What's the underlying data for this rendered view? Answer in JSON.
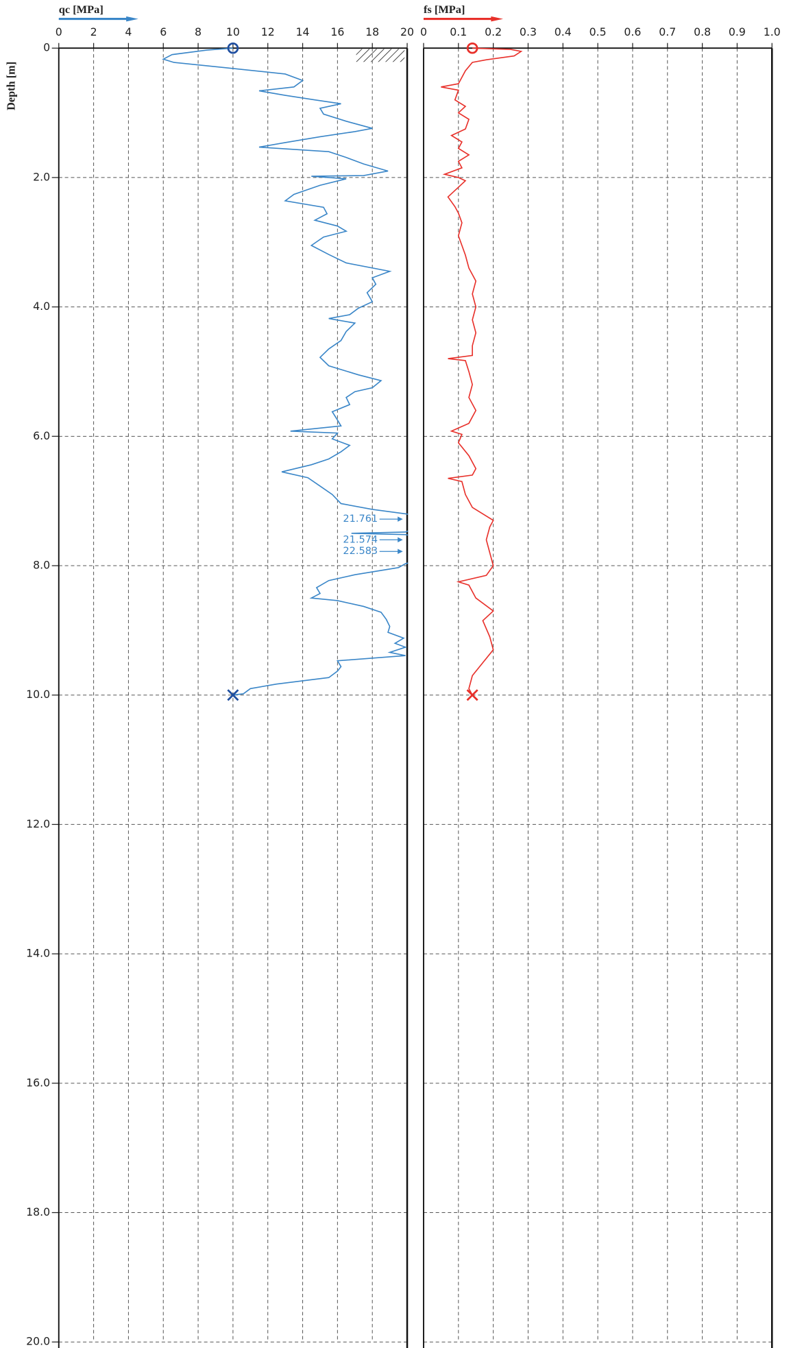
{
  "chart_data": [
    {
      "type": "line",
      "title": "qc [MPa]",
      "ylabel": "Depth [m]",
      "xlim": [
        0,
        20
      ],
      "xticks": [
        0,
        2,
        4,
        6,
        8,
        10,
        12,
        14,
        16,
        18,
        20
      ],
      "ylim": [
        0,
        20
      ],
      "yticks": [
        0,
        {
          "value": 2,
          "label": "2.0"
        },
        {
          "value": 4,
          "label": "4.0"
        },
        {
          "value": 6,
          "label": "6.0"
        },
        {
          "value": 8,
          "label": "8.0"
        },
        {
          "value": 10,
          "label": "10.0"
        },
        {
          "value": 12,
          "label": "12.0"
        },
        {
          "value": 14,
          "label": "14.0"
        },
        {
          "value": 16,
          "label": "16.0"
        },
        {
          "value": 18,
          "label": "18.0"
        },
        {
          "value": 20,
          "label": "20.0"
        }
      ],
      "grid": true,
      "color": "#3a86c8",
      "marker_color": "#1f4fa0",
      "series": [
        {
          "color": "#3a86c8",
          "depth": [
            0,
            0.03,
            0.1,
            0.17,
            0.22,
            0.3,
            0.4,
            0.5,
            0.6,
            0.66,
            0.73,
            0.8,
            0.86,
            0.93,
            1.02,
            1.13,
            1.24,
            1.29,
            1.37,
            1.46,
            1.53,
            1.6,
            1.69,
            1.79,
            1.9,
            1.97,
            1.98,
            2.02,
            2.12,
            2.26,
            2.36,
            2.46,
            2.56,
            2.66,
            2.75,
            2.83,
            2.92,
            3.05,
            3.19,
            3.32,
            3.45,
            3.55,
            3.65,
            3.78,
            3.92,
            4.02,
            4.12,
            4.18,
            4.25,
            4.38,
            4.52,
            4.65,
            4.78,
            4.91,
            5.05,
            5.14,
            5.25,
            5.31,
            5.4,
            5.51,
            5.62,
            5.75,
            5.84,
            5.92,
            5.95,
            6.04,
            6.14,
            6.24,
            6.35,
            6.44,
            6.55,
            6.64,
            6.77,
            6.9,
            7.04,
            7.13,
            7.2,
            7.28,
            7.48,
            7.5,
            7.52,
            7.6,
            7.78,
            7.97,
            8.03,
            8.14,
            8.23,
            8.34,
            8.43,
            8.5,
            8.54,
            8.63,
            8.72,
            8.83,
            8.94,
            9.03,
            9.12,
            9.2,
            9.26,
            9.34,
            9.39,
            9.47,
            9.56,
            9.63,
            9.73,
            9.83,
            9.9,
            9.98,
            10
          ],
          "values": [
            10,
            8.5,
            6.5,
            6.0,
            6.6,
            9.5,
            13,
            14,
            13.5,
            11.5,
            13,
            14.7,
            16.2,
            15,
            15.2,
            16.5,
            18,
            17,
            15,
            13,
            11.5,
            15.5,
            16.5,
            17.5,
            18.9,
            17.5,
            14.5,
            16.5,
            15,
            13.5,
            13,
            15.2,
            15.4,
            14.7,
            16,
            16.5,
            15.2,
            14.5,
            15.5,
            16.5,
            19,
            18,
            18.2,
            17.7,
            18,
            17.2,
            16.7,
            15.5,
            17,
            16.5,
            16.2,
            15.5,
            15,
            15.5,
            17.2,
            18.5,
            18,
            17,
            16.5,
            16.7,
            15.7,
            16,
            16.2,
            13.3,
            16,
            15.7,
            16.7,
            16.2,
            15.5,
            14.5,
            12.8,
            14.3,
            15,
            15.7,
            16.2,
            18,
            19.95,
            21.761,
            19.9,
            16.8,
            19.9,
            21.574,
            22.583,
            19.9,
            19.5,
            17,
            15.5,
            14.8,
            15,
            14.5,
            16,
            17.5,
            18.5,
            18.8,
            19,
            18.9,
            19.8,
            19.3,
            19.9,
            19,
            19.9,
            16,
            16.2,
            16,
            15.5,
            12.5,
            11,
            10.6,
            10
          ]
        }
      ]
    },
    {
      "type": "line",
      "title": "fs [MPa]",
      "xlim": [
        0,
        1
      ],
      "xticks": [
        0,
        0.1,
        0.2,
        0.3,
        0.4,
        0.5,
        0.6,
        0.7,
        0.8,
        0.9,
        {
          "value": 1,
          "label": "1.0"
        }
      ],
      "ylim": [
        0,
        20
      ],
      "yticks": [
        0,
        2,
        4,
        6,
        8,
        10,
        12,
        14,
        16,
        18,
        20
      ],
      "ytick_labels": false,
      "grid": true,
      "color": "#e8302a",
      "marker_color": "#e8302a",
      "series": [
        {
          "color": "#e8302a",
          "depth": [
            0,
            0.02,
            0.05,
            0.12,
            0.18,
            0.22,
            0.35,
            0.55,
            0.6,
            0.65,
            0.8,
            0.9,
            1.0,
            1.1,
            1.25,
            1.35,
            1.45,
            1.55,
            1.65,
            1.75,
            1.85,
            1.95,
            2.0,
            2.05,
            2.15,
            2.3,
            2.45,
            2.55,
            2.7,
            2.9,
            3.05,
            3.2,
            3.4,
            3.6,
            3.8,
            4.0,
            4.2,
            4.4,
            4.6,
            4.75,
            4.8,
            4.83,
            5.0,
            5.2,
            5.4,
            5.6,
            5.8,
            5.92,
            5.97,
            6.1,
            6.3,
            6.5,
            6.6,
            6.65,
            6.7,
            6.9,
            7.1,
            7.3,
            7.4,
            7.6,
            7.8,
            8.0,
            8.15,
            8.25,
            8.3,
            8.5,
            8.7,
            8.85,
            9.1,
            9.3,
            9.5,
            9.7,
            9.9,
            10
          ],
          "values": [
            0.14,
            0.25,
            0.28,
            0.26,
            0.18,
            0.14,
            0.12,
            0.1,
            0.05,
            0.1,
            0.09,
            0.12,
            0.1,
            0.13,
            0.12,
            0.08,
            0.11,
            0.1,
            0.13,
            0.1,
            0.11,
            0.06,
            0.1,
            0.12,
            0.1,
            0.07,
            0.09,
            0.1,
            0.11,
            0.1,
            0.11,
            0.12,
            0.13,
            0.15,
            0.14,
            0.15,
            0.14,
            0.15,
            0.14,
            0.14,
            0.07,
            0.12,
            0.13,
            0.14,
            0.13,
            0.15,
            0.13,
            0.08,
            0.11,
            0.1,
            0.13,
            0.15,
            0.14,
            0.07,
            0.11,
            0.12,
            0.14,
            0.2,
            0.19,
            0.18,
            0.19,
            0.2,
            0.18,
            0.1,
            0.13,
            0.15,
            0.2,
            0.17,
            0.19,
            0.2,
            0.17,
            0.14,
            0.13,
            0.14
          ]
        }
      ]
    }
  ]
}
